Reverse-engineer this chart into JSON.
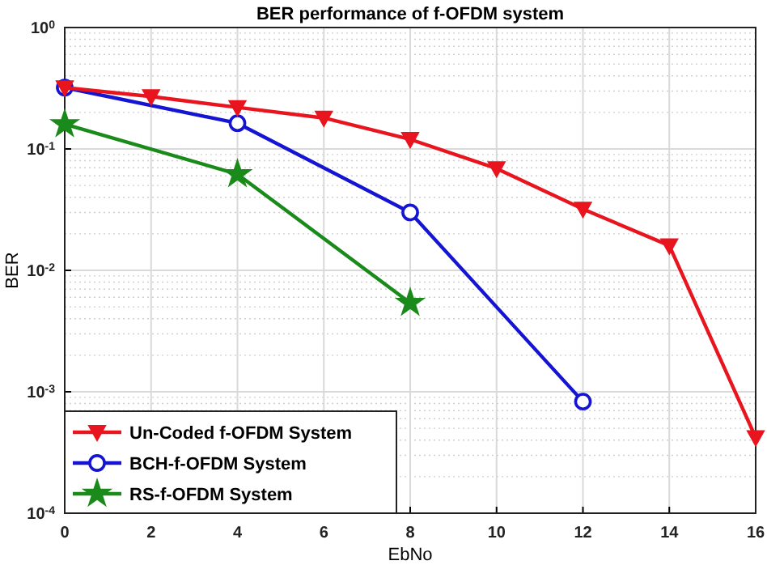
{
  "chart_data": {
    "type": "line",
    "title": "BER performance of f-OFDM system",
    "xlabel": "EbNo",
    "ylabel": "BER",
    "log": "y",
    "grid": true,
    "legend": "bottom left",
    "xlim": [
      0,
      16
    ],
    "xticks": [
      0,
      2,
      4,
      6,
      8,
      10,
      12,
      14,
      16
    ],
    "ylim": [
      0.0001,
      1
    ],
    "yticks": [
      {
        "value": 0.0001,
        "label": "10$^{-4}$"
      },
      {
        "value": 0.001,
        "label": "10$^{-3}$"
      },
      {
        "value": 0.01,
        "label": "10$^{-2}$"
      },
      {
        "value": 0.1,
        "label": "10$^{-1}$"
      },
      {
        "value": 1,
        "label": "10$^{0}$"
      }
    ],
    "series": [
      {
        "name": "Un-Coded f-OFDM System",
        "color": "#e8141e",
        "marker": "triangle",
        "x": [
          0,
          2,
          4,
          6,
          8,
          10,
          12,
          14,
          16
        ],
        "values": [
          0.32,
          0.27,
          0.22,
          0.18,
          0.12,
          0.069,
          0.032,
          0.016,
          0.00042
        ]
      },
      {
        "name": "BCH-f-OFDM System",
        "color": "#1414d2",
        "marker": "circle",
        "x": [
          0,
          4,
          8,
          12
        ],
        "values": [
          0.32,
          0.163,
          0.03,
          0.00083
        ]
      },
      {
        "name": "RS-f-OFDM System",
        "color": "#1a8a1a",
        "marker": "star",
        "x": [
          0,
          4,
          8
        ],
        "values": [
          0.16,
          0.062,
          0.0054
        ]
      }
    ]
  }
}
